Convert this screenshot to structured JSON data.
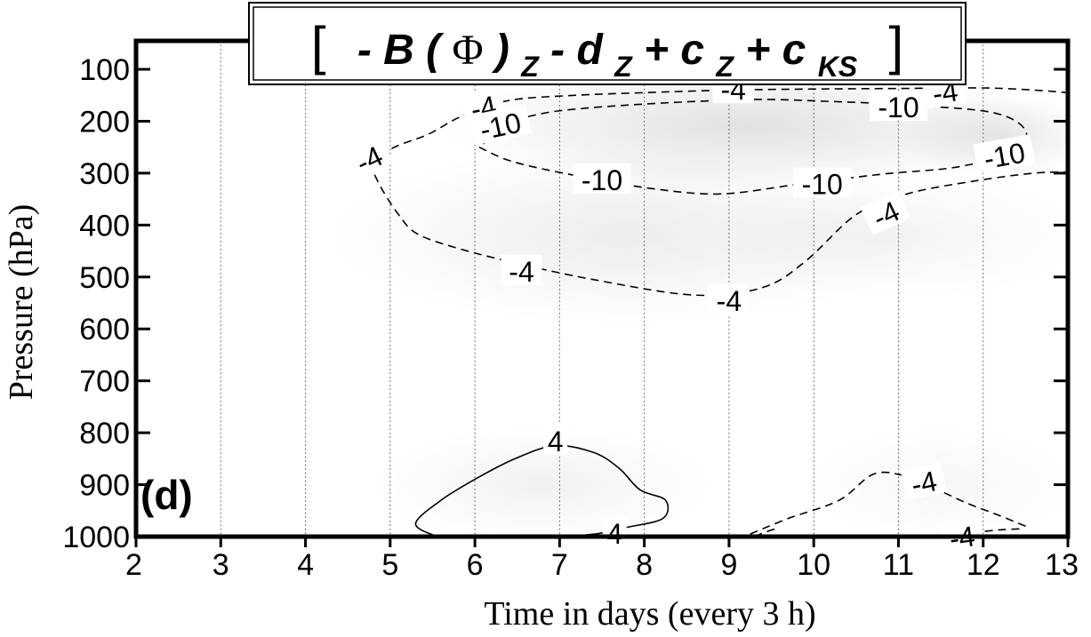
{
  "chart_data": {
    "type": "contour",
    "title": {
      "bracket_open": "[",
      "bracket_close": "]",
      "prefix": "- B (",
      "phi": "Φ",
      "after_phi": ")",
      "sub1": "Z",
      "mid1": " - d",
      "sub2": "Z",
      "mid2": " + c",
      "sub3": "Z",
      "mid3": " + c",
      "sub4": "KS"
    },
    "xlabel": "Time in days (every 3 h)",
    "ylabel": "Pressure (hPa)",
    "panel_label": "(d)",
    "xlim": [
      2,
      13
    ],
    "ylim": [
      1000,
      50
    ],
    "x_ticks": [
      {
        "value": 2,
        "label": "2"
      },
      {
        "value": 3,
        "label": "3"
      },
      {
        "value": 4,
        "label": "4"
      },
      {
        "value": 5,
        "label": "5"
      },
      {
        "value": 6,
        "label": "6"
      },
      {
        "value": 7,
        "label": "7"
      },
      {
        "value": 8,
        "label": "8"
      },
      {
        "value": 9,
        "label": "9"
      },
      {
        "value": 10,
        "label": "10"
      },
      {
        "value": 11,
        "label": "11"
      },
      {
        "value": 12,
        "label": "12"
      },
      {
        "value": 13,
        "label": "13"
      }
    ],
    "y_ticks": [
      {
        "value": 100,
        "label": "100"
      },
      {
        "value": 200,
        "label": "200"
      },
      {
        "value": 300,
        "label": "300"
      },
      {
        "value": 400,
        "label": "400"
      },
      {
        "value": 500,
        "label": "500"
      },
      {
        "value": 600,
        "label": "600"
      },
      {
        "value": 700,
        "label": "700"
      },
      {
        "value": 800,
        "label": "800"
      },
      {
        "value": 900,
        "label": "900"
      },
      {
        "value": 1000,
        "label": "1000"
      }
    ],
    "vertical_gridlines_at": [
      3,
      4,
      5,
      6,
      7,
      8,
      9,
      10,
      11,
      12
    ],
    "contours": [
      {
        "level": -4,
        "style": "dashed",
        "points": [
          [
            4.75,
            280
          ],
          [
            5.05,
            250
          ],
          [
            5.45,
            225
          ],
          [
            5.85,
            190
          ],
          [
            6.4,
            160
          ],
          [
            7.2,
            150
          ],
          [
            8.0,
            145
          ],
          [
            9.0,
            140
          ],
          [
            10.0,
            138
          ],
          [
            11.0,
            137
          ],
          [
            12.0,
            136
          ],
          [
            12.6,
            140
          ],
          [
            13.0,
            145
          ]
        ]
      },
      {
        "level": -4,
        "style": "dashed",
        "points": [
          [
            4.75,
            280
          ],
          [
            4.9,
            330
          ],
          [
            5.1,
            380
          ],
          [
            5.3,
            415
          ],
          [
            5.7,
            440
          ],
          [
            6.4,
            470
          ],
          [
            7.4,
            505
          ],
          [
            8.6,
            535
          ],
          [
            9.4,
            520
          ],
          [
            9.9,
            470
          ],
          [
            10.5,
            380
          ],
          [
            11.1,
            340
          ],
          [
            11.9,
            315
          ],
          [
            12.6,
            300
          ],
          [
            13.0,
            298
          ]
        ]
      },
      {
        "level": -10,
        "style": "dashed",
        "points": [
          [
            6.05,
            250
          ],
          [
            6.45,
            278
          ],
          [
            7.2,
            305
          ],
          [
            8.1,
            330
          ],
          [
            8.9,
            340
          ],
          [
            9.8,
            322
          ],
          [
            10.8,
            302
          ],
          [
            11.7,
            288
          ],
          [
            12.35,
            258
          ],
          [
            12.5,
            218
          ],
          [
            12.1,
            183
          ],
          [
            11.0,
            168
          ],
          [
            10.2,
            162
          ],
          [
            9.4,
            158
          ],
          [
            8.6,
            162
          ],
          [
            7.9,
            168
          ],
          [
            7.3,
            175
          ],
          [
            6.8,
            185
          ],
          [
            6.4,
            205
          ],
          [
            6.05,
            250
          ]
        ]
      },
      {
        "level": 4,
        "style": "solid",
        "points": [
          [
            5.55,
            1000
          ],
          [
            5.3,
            975
          ],
          [
            5.6,
            930
          ],
          [
            6.05,
            885
          ],
          [
            6.5,
            848
          ],
          [
            6.95,
            825
          ],
          [
            7.4,
            838
          ],
          [
            7.7,
            868
          ],
          [
            7.95,
            910
          ],
          [
            8.25,
            930
          ],
          [
            8.22,
            965
          ],
          [
            7.8,
            982
          ],
          [
            7.5,
            993
          ],
          [
            7.1,
            1000
          ]
        ]
      },
      {
        "level": -4,
        "style": "dashed",
        "points": [
          [
            9.25,
            995
          ],
          [
            9.7,
            965
          ],
          [
            10.3,
            930
          ],
          [
            10.7,
            880
          ],
          [
            11.05,
            882
          ],
          [
            11.4,
            905
          ],
          [
            11.8,
            935
          ],
          [
            12.2,
            960
          ],
          [
            12.5,
            980
          ]
        ]
      },
      {
        "level": -4,
        "style": "dashed",
        "points": [
          [
            9.3,
            1000
          ],
          [
            9.45,
            990
          ],
          [
            9.55,
            985
          ]
        ]
      },
      {
        "level": -4,
        "style": "dashed",
        "points": [
          [
            11.55,
            1000
          ],
          [
            11.9,
            992
          ],
          [
            12.2,
            987
          ],
          [
            12.45,
            985
          ]
        ]
      }
    ],
    "contour_labels": [
      {
        "text": "-4",
        "x": 4.75,
        "y": 272,
        "angle": -25
      },
      {
        "text": "-4",
        "x": 6.1,
        "y": 172,
        "angle": -12
      },
      {
        "text": "-10",
        "x": 6.3,
        "y": 208,
        "angle": -12
      },
      {
        "text": "-4",
        "x": 9.05,
        "y": 138,
        "angle": 0
      },
      {
        "text": "-10",
        "x": 11.0,
        "y": 172,
        "angle": 0
      },
      {
        "text": "-4",
        "x": 11.55,
        "y": 143,
        "angle": -8
      },
      {
        "text": "-10",
        "x": 12.25,
        "y": 265,
        "angle": -10
      },
      {
        "text": "-10",
        "x": 7.5,
        "y": 312,
        "angle": 0
      },
      {
        "text": "-10",
        "x": 10.1,
        "y": 320,
        "angle": 0
      },
      {
        "text": "-4",
        "x": 10.85,
        "y": 378,
        "angle": -25
      },
      {
        "text": "-4",
        "x": 6.55,
        "y": 488,
        "angle": 0
      },
      {
        "text": "-4",
        "x": 9.0,
        "y": 545,
        "angle": 0
      },
      {
        "text": "4",
        "x": 6.95,
        "y": 815,
        "angle": 0
      },
      {
        "text": "4",
        "x": 7.65,
        "y": 993,
        "angle": 0
      },
      {
        "text": "-4",
        "x": 11.3,
        "y": 895,
        "angle": -12
      },
      {
        "text": "-4",
        "x": 11.75,
        "y": 1000,
        "angle": -8
      }
    ],
    "shading": [
      {
        "cx": 9.2,
        "cy": 210,
        "rx": 3.6,
        "ry": 120,
        "opacity": 0.26
      },
      {
        "cx": 12.2,
        "cy": 230,
        "rx": 1.2,
        "ry": 80,
        "opacity": 0.2
      },
      {
        "cx": 7.8,
        "cy": 420,
        "rx": 3.5,
        "ry": 170,
        "opacity": 0.16
      },
      {
        "cx": 11.0,
        "cy": 420,
        "rx": 2.2,
        "ry": 120,
        "opacity": 0.1
      },
      {
        "cx": 6.8,
        "cy": 900,
        "rx": 2.0,
        "ry": 110,
        "opacity": 0.12
      },
      {
        "cx": 11.5,
        "cy": 900,
        "rx": 1.6,
        "ry": 110,
        "opacity": 0.08
      }
    ]
  }
}
